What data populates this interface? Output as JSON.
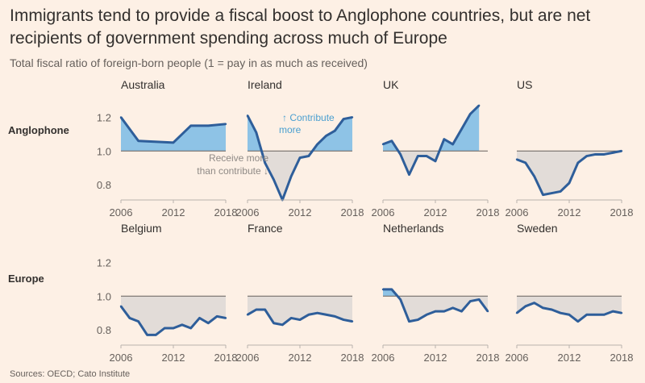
{
  "title": "Immigrants tend to provide a fiscal boost to Anglophone countries, but are net recipients of government spending across much of Europe",
  "subtitle": "Total fiscal ratio of foreign-born people (1 = pay in as much as received)",
  "source": "Sources: OECD; Cato Institute",
  "colors": {
    "line": "#2e5e9a",
    "above_fill": "#8ec3e6",
    "below_fill": "#e2dcd8",
    "baseline": "#66605c",
    "annotation_blue": "#4a9fd0",
    "annotation_grey": "#8f8a86"
  },
  "annotations": {
    "contribute": [
      "↑ Contribute",
      "more"
    ],
    "receive": [
      "Receive more",
      "than contribute ↓"
    ]
  },
  "chart_data": {
    "type": "area",
    "layout": "small-multiples",
    "ylim": [
      0.7,
      1.25
    ],
    "yticks": [
      "1.2",
      "1.0",
      "0.8"
    ],
    "xticks": [
      "2006",
      "2012",
      "2018"
    ],
    "baseline": 1.0,
    "groups": [
      {
        "name": "Anglophone",
        "panels": [
          {
            "name": "Australia",
            "x": [
              2006,
              2008,
              2012,
              2014,
              2016,
              2018
            ],
            "y": [
              1.2,
              1.06,
              1.05,
              1.15,
              1.15,
              1.16
            ]
          },
          {
            "name": "Ireland",
            "x": [
              2006,
              2007,
              2008,
              2009,
              2010,
              2011,
              2012,
              2013,
              2014,
              2015,
              2016,
              2017,
              2018
            ],
            "y": [
              1.21,
              1.11,
              0.93,
              0.83,
              0.71,
              0.85,
              0.96,
              0.97,
              1.04,
              1.09,
              1.12,
              1.19,
              1.2
            ]
          },
          {
            "name": "UK",
            "x": [
              2006,
              2007,
              2008,
              2009,
              2010,
              2011,
              2012,
              2013,
              2014,
              2015,
              2016,
              2017
            ],
            "y": [
              1.04,
              1.06,
              0.98,
              0.86,
              0.97,
              0.97,
              0.94,
              1.07,
              1.04,
              1.13,
              1.22,
              1.27
            ]
          },
          {
            "name": "US",
            "x": [
              2006,
              2007,
              2008,
              2009,
              2010,
              2011,
              2012,
              2013,
              2014,
              2015,
              2016,
              2017,
              2018
            ],
            "y": [
              0.95,
              0.93,
              0.85,
              0.74,
              0.75,
              0.76,
              0.81,
              0.93,
              0.97,
              0.98,
              0.98,
              0.99,
              1.0
            ]
          }
        ]
      },
      {
        "name": "Europe",
        "panels": [
          {
            "name": "Belgium",
            "x": [
              2006,
              2007,
              2008,
              2009,
              2010,
              2011,
              2012,
              2013,
              2014,
              2015,
              2016,
              2017,
              2018
            ],
            "y": [
              0.94,
              0.87,
              0.85,
              0.77,
              0.77,
              0.81,
              0.81,
              0.83,
              0.81,
              0.87,
              0.84,
              0.88,
              0.87
            ]
          },
          {
            "name": "France",
            "x": [
              2006,
              2007,
              2008,
              2009,
              2010,
              2011,
              2012,
              2013,
              2014,
              2015,
              2016,
              2017,
              2018
            ],
            "y": [
              0.89,
              0.92,
              0.92,
              0.84,
              0.83,
              0.87,
              0.86,
              0.89,
              0.9,
              0.89,
              0.88,
              0.86,
              0.85
            ]
          },
          {
            "name": "Netherlands",
            "x": [
              2006,
              2007,
              2008,
              2009,
              2010,
              2011,
              2012,
              2013,
              2014,
              2015,
              2016,
              2017,
              2018
            ],
            "y": [
              1.04,
              1.04,
              0.98,
              0.85,
              0.86,
              0.89,
              0.91,
              0.91,
              0.93,
              0.91,
              0.97,
              0.98,
              0.91
            ]
          },
          {
            "name": "Sweden",
            "x": [
              2006,
              2007,
              2008,
              2009,
              2010,
              2011,
              2012,
              2013,
              2014,
              2015,
              2016,
              2017,
              2018
            ],
            "y": [
              0.9,
              0.94,
              0.96,
              0.93,
              0.92,
              0.9,
              0.89,
              0.85,
              0.89,
              0.89,
              0.89,
              0.91,
              0.9
            ]
          }
        ]
      }
    ]
  }
}
